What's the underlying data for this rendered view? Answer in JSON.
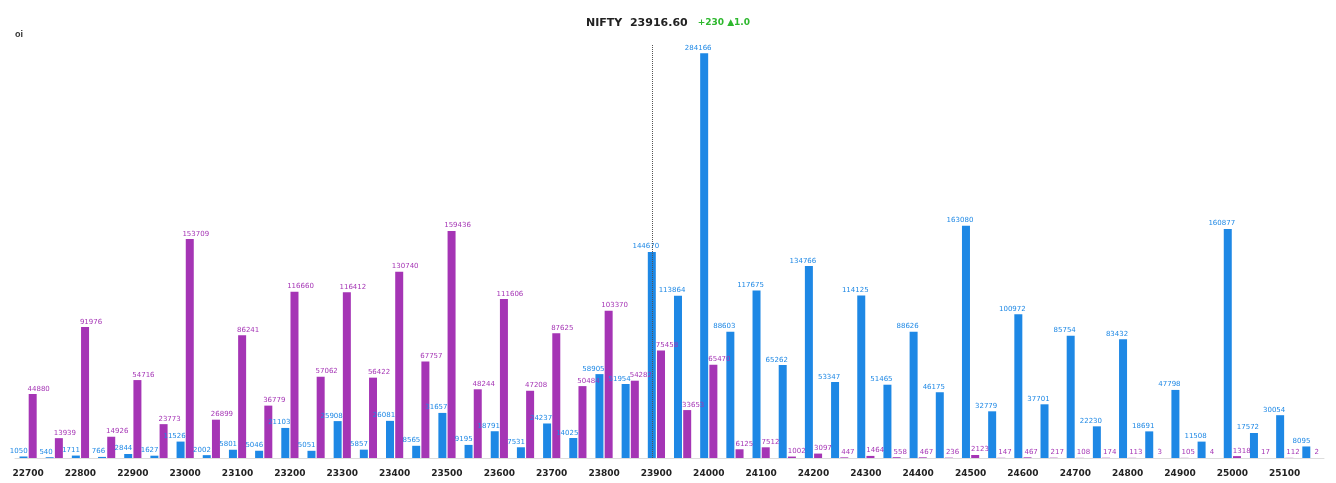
{
  "chart_data": {
    "type": "bar",
    "title": "NIFTY  23916.60",
    "subtitle": "+230 ▲1.0",
    "ylabel": "oi",
    "categories": [
      "22700",
      null,
      "22800",
      null,
      "22900",
      null,
      "23000",
      null,
      "23100",
      null,
      "23200",
      null,
      "23300",
      null,
      "23400",
      null,
      "23500",
      null,
      "23600",
      null,
      "23700",
      null,
      "23800",
      null,
      "23900",
      null,
      "24000",
      null,
      "24100",
      null,
      "24200",
      null,
      "24300",
      null,
      "24400",
      null,
      "24500",
      null,
      "24600",
      null,
      "24700",
      null,
      "24800",
      null,
      "24900",
      null,
      "25000",
      null,
      "25100",
      null
    ],
    "ylim": [
      0,
      290000
    ],
    "tick_labels": "x",
    "series": [
      {
        "color": "#1e88e5",
        "values": [
          1050,
          540,
          1711,
          766,
          2844,
          1627,
          11526,
          2002,
          5801,
          5046,
          21103,
          5051,
          25908,
          5857,
          26081,
          8565,
          31657,
          9195,
          18791,
          7531,
          24237,
          14025,
          58905,
          51954,
          144670,
          113864,
          284166,
          88603,
          117675,
          65262,
          134766,
          53347,
          114125,
          51465,
          88626,
          46175,
          163080,
          32779,
          100972,
          37701,
          85754,
          22230,
          83432,
          18691,
          47798,
          11508,
          160877,
          17572,
          30054,
          8095
        ]
      },
      {
        "color": "#a535b5",
        "values": [
          44880,
          13939,
          91976,
          14926,
          54716,
          23773,
          153709,
          26899,
          86241,
          36779,
          116660,
          57062,
          116412,
          56422,
          130740,
          67757,
          159436,
          48244,
          111606,
          47208,
          87625,
          50484,
          103370,
          54282,
          75458,
          33653,
          65470,
          6125,
          7512,
          1002,
          3097,
          447,
          1464,
          558,
          467,
          236,
          2123,
          147,
          467,
          217,
          108,
          174,
          113,
          3,
          105,
          4,
          1318,
          17,
          112,
          2
        ]
      }
    ],
    "data_labels": true
  }
}
